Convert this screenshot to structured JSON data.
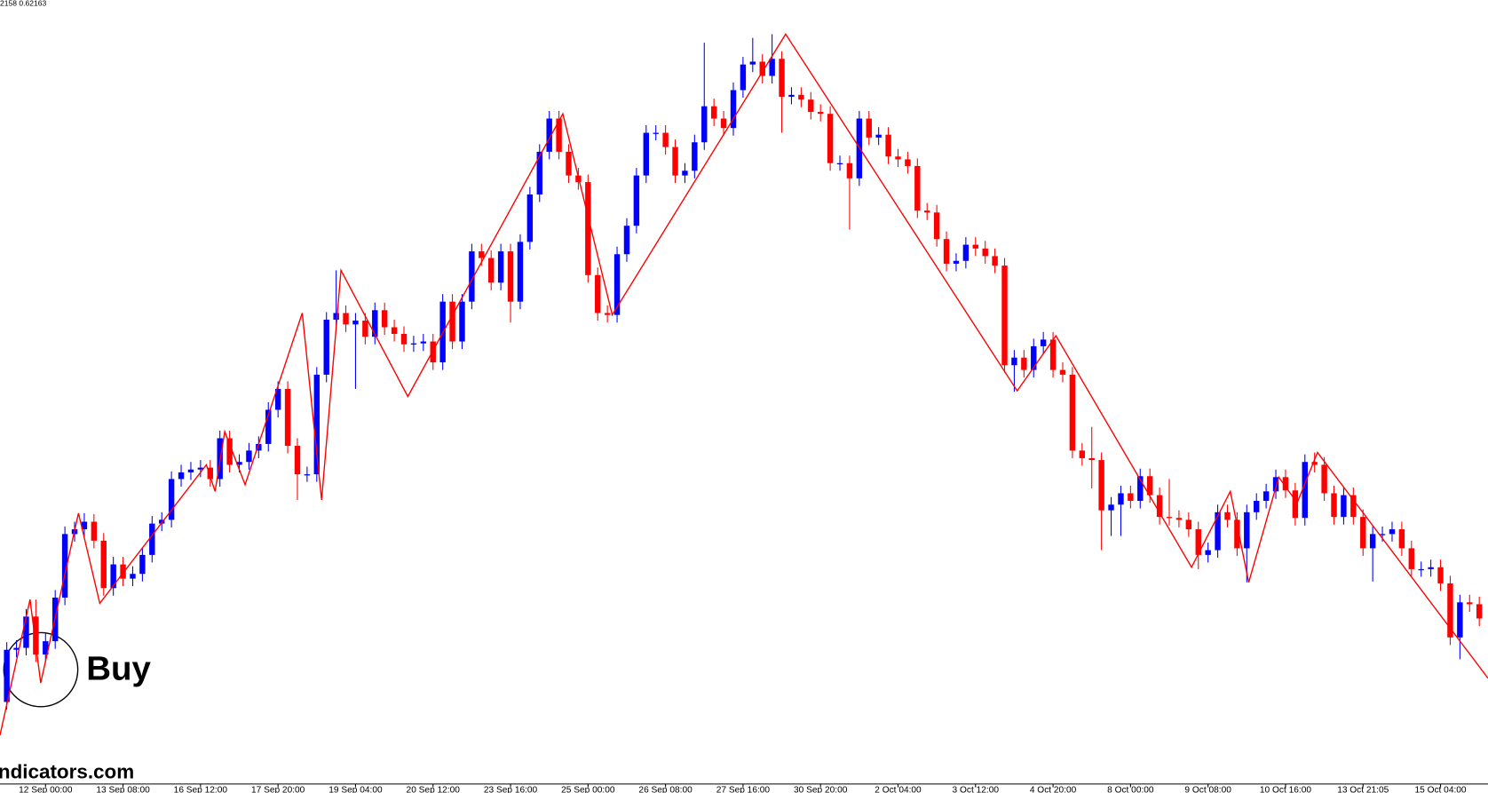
{
  "chart_data": {
    "type": "candlestick",
    "header_text": "2158 0.62163",
    "annotation": "Buy",
    "watermark": "ndicators.com",
    "up_color": "#0000ff",
    "down_color": "#ff0000",
    "xlim": [
      -0.7,
      152.9
    ],
    "ylim": [
      0.6,
      0.6825
    ],
    "categories": [
      null,
      null,
      null,
      null,
      "12 Sep 00:00",
      null,
      null,
      null,
      null,
      null,
      null,
      null,
      "13 Sep 08:00",
      null,
      null,
      null,
      null,
      null,
      null,
      null,
      "16 Sep 12:00",
      null,
      null,
      null,
      null,
      null,
      null,
      null,
      "17 Sep 20:00",
      null,
      null,
      null,
      null,
      null,
      null,
      null,
      "19 Sep 04:00",
      null,
      null,
      null,
      null,
      null,
      null,
      null,
      "20 Sep 12:00",
      null,
      null,
      null,
      null,
      null,
      null,
      null,
      "23 Sep 16:00",
      null,
      null,
      null,
      null,
      null,
      null,
      null,
      "25 Sep 00:00",
      null,
      null,
      null,
      null,
      null,
      null,
      null,
      "26 Sep 08:00",
      null,
      null,
      null,
      null,
      null,
      null,
      null,
      "27 Sep 16:00",
      null,
      null,
      null,
      null,
      null,
      null,
      null,
      "30 Sep 20:00",
      null,
      null,
      null,
      null,
      null,
      null,
      null,
      "2 Oct 04:00",
      null,
      null,
      null,
      null,
      null,
      null,
      null,
      "3 Oct 12:00",
      null,
      null,
      null,
      null,
      null,
      null,
      null,
      "4 Oct 20:00",
      null,
      null,
      null,
      null,
      null,
      null,
      null,
      "8 Oct 00:00",
      null,
      null,
      null,
      null,
      null,
      null,
      null,
      "9 Oct 08:00",
      null,
      null,
      null,
      null,
      null,
      null,
      null,
      "10 Oct 16:00",
      null,
      null,
      null,
      null,
      null,
      null,
      null,
      "13 Oct 21:05",
      null,
      null,
      null,
      null,
      null,
      null,
      null,
      "15 Oct 04:00",
      null,
      null,
      null,
      null
    ],
    "open": [
      0.6085,
      0.614,
      0.6142,
      0.6175,
      0.6135,
      0.6149,
      0.6195,
      0.6262,
      0.6267,
      0.6275,
      0.6255,
      0.6205,
      0.623,
      0.6215,
      0.622,
      0.624,
      0.6273,
      0.6277,
      0.632,
      0.6327,
      0.633,
      0.6332,
      0.632,
      0.6363,
      0.6335,
      0.6338,
      0.635,
      0.6357,
      0.6393,
      0.6415,
      0.6355,
      0.6325,
      0.6325,
      0.643,
      0.6488,
      0.6495,
      0.6483,
      0.6487,
      0.647,
      0.6498,
      0.648,
      0.6473,
      0.6462,
      0.6463,
      0.6465,
      0.6443,
      0.6507,
      0.6465,
      0.6507,
      0.656,
      0.6553,
      0.6527,
      0.656,
      0.6507,
      0.657,
      0.662,
      0.6665,
      0.67,
      0.6665,
      0.664,
      0.6633,
      0.6535,
      0.6495,
      0.6493,
      0.6557,
      0.6587,
      0.664,
      0.6685,
      0.6685,
      0.667,
      0.664,
      0.6645,
      0.6675,
      0.6713,
      0.67,
      0.669,
      0.673,
      0.6757,
      0.676,
      0.6745,
      0.6763,
      0.6723,
      0.6725,
      0.672,
      0.6707,
      0.6705,
      0.6653,
      0.6653,
      0.6637,
      0.67,
      0.668,
      0.6683,
      0.666,
      0.6657,
      0.665,
      0.6603,
      0.6601,
      0.6573,
      0.6547,
      0.655,
      0.6567,
      0.6563,
      0.6555,
      0.6545,
      0.644,
      0.6448,
      0.6435,
      0.646,
      0.6467,
      0.6435,
      0.643,
      0.635,
      0.6342,
      0.634,
      0.6287,
      0.6293,
      0.6305,
      0.6297,
      0.6323,
      0.6303,
      0.628,
      0.6279,
      0.6277,
      0.6267,
      0.624,
      0.6245,
      0.6285,
      0.6277,
      0.6247,
      0.6285,
      0.6297,
      0.6307,
      0.6322,
      0.6308,
      0.6279,
      0.6338,
      0.6335,
      0.6305,
      0.628,
      0.6303,
      0.628,
      0.6247,
      0.6262,
      0.6262,
      0.6267,
      0.6247,
      0.6225,
      0.6225,
      0.6227,
      0.621,
      0.6153,
      0.619,
      0.6188
    ],
    "high": [
      0.6148,
      0.615,
      0.6183,
      0.6193,
      0.6157,
      0.6203,
      0.627,
      0.6275,
      0.6284,
      0.6283,
      0.6263,
      0.6238,
      0.6238,
      0.6228,
      0.6248,
      0.6281,
      0.6285,
      0.6328,
      0.6335,
      0.6338,
      0.634,
      0.634,
      0.6371,
      0.6371,
      0.6346,
      0.6358,
      0.6365,
      0.6401,
      0.6423,
      0.6423,
      0.6363,
      0.6333,
      0.6438,
      0.6496,
      0.654,
      0.6503,
      0.6495,
      0.6495,
      0.6506,
      0.6506,
      0.6488,
      0.6481,
      0.6471,
      0.6473,
      0.6473,
      0.6515,
      0.6515,
      0.6515,
      0.6568,
      0.6568,
      0.6561,
      0.6568,
      0.6568,
      0.6578,
      0.6628,
      0.6673,
      0.6708,
      0.6708,
      0.6673,
      0.6648,
      0.6641,
      0.6543,
      0.6503,
      0.6565,
      0.6595,
      0.6648,
      0.6693,
      0.6693,
      0.6693,
      0.6678,
      0.6653,
      0.6683,
      0.678,
      0.6721,
      0.6708,
      0.6738,
      0.6765,
      0.6785,
      0.6768,
      0.6789,
      0.6771,
      0.6733,
      0.6733,
      0.6728,
      0.6715,
      0.6713,
      0.6661,
      0.6661,
      0.6708,
      0.6708,
      0.6691,
      0.6691,
      0.6668,
      0.6665,
      0.6658,
      0.6611,
      0.6609,
      0.6581,
      0.6558,
      0.6575,
      0.6575,
      0.6571,
      0.6563,
      0.6553,
      0.6456,
      0.6456,
      0.6468,
      0.6475,
      0.6475,
      0.6443,
      0.6438,
      0.6358,
      0.6375,
      0.6348,
      0.6301,
      0.6313,
      0.6313,
      0.6331,
      0.6331,
      0.6311,
      0.632,
      0.6287,
      0.6285,
      0.6275,
      0.6253,
      0.6293,
      0.6293,
      0.6285,
      0.6293,
      0.6305,
      0.6315,
      0.633,
      0.633,
      0.6316,
      0.6346,
      0.6348,
      0.6343,
      0.6313,
      0.6311,
      0.6311,
      0.6288,
      0.627,
      0.627,
      0.6275,
      0.6275,
      0.6255,
      0.6233,
      0.6235,
      0.6235,
      0.6218,
      0.6198,
      0.6198,
      0.6196
    ],
    "low": [
      0.6077,
      0.6132,
      0.6134,
      0.6127,
      0.6127,
      0.6141,
      0.6187,
      0.6254,
      0.6259,
      0.6247,
      0.6197,
      0.6197,
      0.6207,
      0.6207,
      0.6212,
      0.6232,
      0.6265,
      0.6269,
      0.6312,
      0.6319,
      0.6322,
      0.6312,
      0.6312,
      0.6327,
      0.6327,
      0.633,
      0.6342,
      0.6349,
      0.6385,
      0.6347,
      0.6298,
      0.6317,
      0.6317,
      0.6422,
      0.648,
      0.6475,
      0.6415,
      0.6462,
      0.6462,
      0.6472,
      0.6465,
      0.6454,
      0.6454,
      0.6455,
      0.6435,
      0.6435,
      0.6457,
      0.6457,
      0.6499,
      0.6545,
      0.6519,
      0.6519,
      0.6485,
      0.6499,
      0.6562,
      0.6612,
      0.6657,
      0.6657,
      0.6632,
      0.6625,
      0.6527,
      0.6487,
      0.6485,
      0.6485,
      0.6549,
      0.6579,
      0.6632,
      0.6677,
      0.6662,
      0.6632,
      0.6632,
      0.6637,
      0.6667,
      0.6692,
      0.6682,
      0.6682,
      0.6722,
      0.6749,
      0.6737,
      0.6737,
      0.6685,
      0.6715,
      0.6712,
      0.6699,
      0.6697,
      0.6645,
      0.6645,
      0.6583,
      0.6629,
      0.6672,
      0.6672,
      0.6652,
      0.6649,
      0.6642,
      0.6595,
      0.6593,
      0.6565,
      0.6539,
      0.6539,
      0.6542,
      0.6555,
      0.6547,
      0.6537,
      0.6432,
      0.6412,
      0.6427,
      0.6427,
      0.6452,
      0.6427,
      0.6422,
      0.6342,
      0.6334,
      0.631,
      0.6245,
      0.626,
      0.626,
      0.6289,
      0.6289,
      0.6295,
      0.6272,
      0.6271,
      0.6269,
      0.6259,
      0.6225,
      0.6232,
      0.6237,
      0.6269,
      0.6239,
      0.6211,
      0.6277,
      0.6289,
      0.6299,
      0.63,
      0.6271,
      0.6271,
      0.6327,
      0.6297,
      0.6272,
      0.6272,
      0.6272,
      0.6239,
      0.6212,
      0.6254,
      0.6254,
      0.6239,
      0.6217,
      0.6217,
      0.6217,
      0.6202,
      0.6145,
      0.613,
      0.618,
      0.6165
    ],
    "close": [
      0.614,
      0.6142,
      0.6175,
      0.6135,
      0.6149,
      0.6195,
      0.6262,
      0.6267,
      0.6275,
      0.6255,
      0.6205,
      0.623,
      0.6215,
      0.622,
      0.624,
      0.6273,
      0.6277,
      0.632,
      0.6327,
      0.633,
      0.6332,
      0.632,
      0.6363,
      0.6335,
      0.6338,
      0.635,
      0.6357,
      0.6393,
      0.6415,
      0.6355,
      0.6325,
      0.6325,
      0.643,
      0.6488,
      0.6495,
      0.6483,
      0.6487,
      0.647,
      0.6498,
      0.648,
      0.6473,
      0.6462,
      0.6463,
      0.6465,
      0.6443,
      0.6507,
      0.6465,
      0.6507,
      0.656,
      0.6553,
      0.6527,
      0.656,
      0.6507,
      0.657,
      0.662,
      0.6665,
      0.67,
      0.6665,
      0.664,
      0.6633,
      0.6535,
      0.6495,
      0.6493,
      0.6557,
      0.6587,
      0.664,
      0.6685,
      0.6685,
      0.667,
      0.664,
      0.6645,
      0.6675,
      0.6713,
      0.67,
      0.669,
      0.673,
      0.6757,
      0.676,
      0.6745,
      0.6763,
      0.6723,
      0.6725,
      0.672,
      0.6707,
      0.6705,
      0.6653,
      0.6653,
      0.6637,
      0.67,
      0.668,
      0.6683,
      0.666,
      0.6657,
      0.665,
      0.6603,
      0.6601,
      0.6573,
      0.6547,
      0.655,
      0.6567,
      0.6563,
      0.6555,
      0.6545,
      0.644,
      0.6448,
      0.6435,
      0.646,
      0.6467,
      0.6435,
      0.643,
      0.635,
      0.6342,
      0.634,
      0.6287,
      0.6293,
      0.6305,
      0.6297,
      0.6323,
      0.6303,
      0.628,
      0.6279,
      0.6277,
      0.6267,
      0.624,
      0.6245,
      0.6285,
      0.6277,
      0.6247,
      0.6285,
      0.6297,
      0.6307,
      0.6322,
      0.6308,
      0.6279,
      0.6338,
      0.6335,
      0.6305,
      0.628,
      0.6303,
      0.628,
      0.6247,
      0.6262,
      0.6262,
      0.6267,
      0.6247,
      0.6225,
      0.6225,
      0.6227,
      0.621,
      0.6153,
      0.619,
      0.6188,
      0.6173
    ],
    "zigzag": {
      "color": "#ff0000",
      "x": [
        -0.7,
        2.4,
        3.5,
        7.4,
        9.6,
        20.6,
        21.5,
        22.5,
        24.6,
        30.5,
        32.5,
        34.5,
        41.4,
        57.4,
        62.5,
        80.4,
        104.3,
        108.3,
        122.3,
        126.3,
        128.2,
        131.3,
        133.2,
        135.3,
        152.9
      ],
      "values": [
        0.605,
        0.6193,
        0.6105,
        0.6284,
        0.6189,
        0.6335,
        0.6307,
        0.637,
        0.6314,
        0.6495,
        0.6298,
        0.654,
        0.6407,
        0.6705,
        0.6493,
        0.6789,
        0.6413,
        0.6471,
        0.6227,
        0.6307,
        0.6211,
        0.6322,
        0.6295,
        0.6348,
        0.611
      ]
    }
  }
}
